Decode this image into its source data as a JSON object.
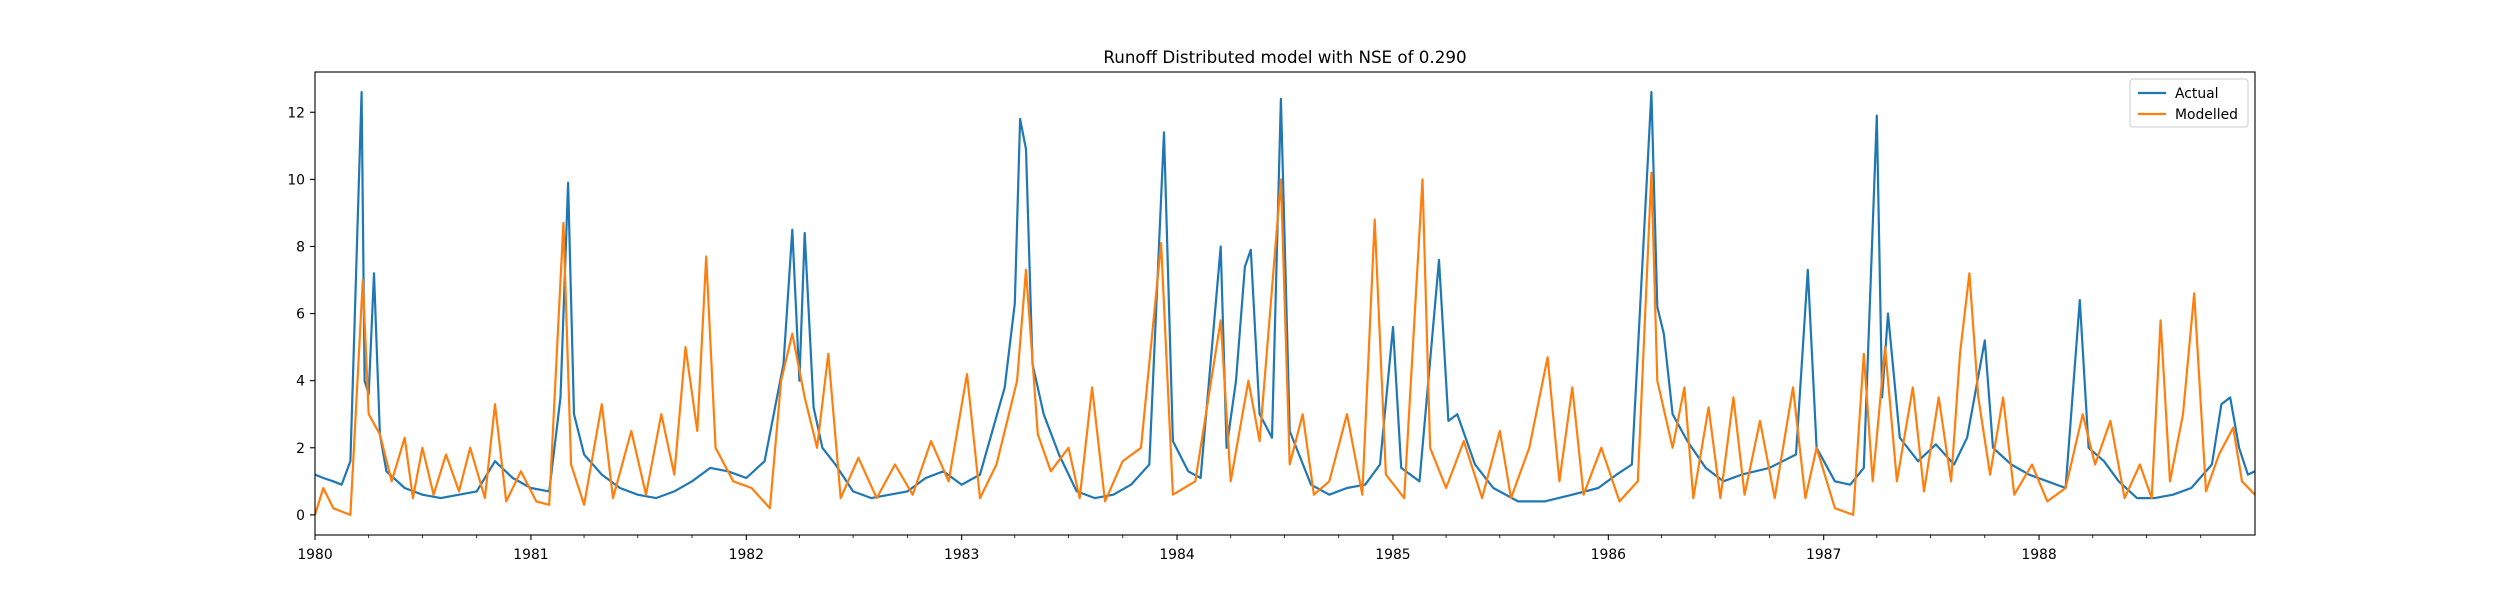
{
  "chart_data": {
    "type": "line",
    "title": "Runoff Distributed model with NSE of 0.290",
    "xlabel": "",
    "ylabel": "",
    "x_range": [
      "1980-01-01",
      "1989-01-01"
    ],
    "ylim": [
      -0.6,
      13.2
    ],
    "x_ticks": [
      "1980",
      "1981",
      "1982",
      "1983",
      "1984",
      "1985",
      "1986",
      "1987",
      "1988"
    ],
    "y_ticks": [
      0,
      2,
      4,
      6,
      8,
      10,
      12
    ],
    "grid": false,
    "legend_position": "top-right",
    "series": [
      {
        "name": "Actual",
        "color": "#1f77b4",
        "points": [
          [
            "1980-01-01",
            1.2
          ],
          [
            "1980-01-15",
            1.1
          ],
          [
            "1980-02-01",
            1.0
          ],
          [
            "1980-02-15",
            0.9
          ],
          [
            "1980-03-01",
            1.6
          ],
          [
            "1980-03-20",
            12.6
          ],
          [
            "1980-03-25",
            4.0
          ],
          [
            "1980-04-01",
            3.6
          ],
          [
            "1980-04-10",
            7.2
          ],
          [
            "1980-04-20",
            2.4
          ],
          [
            "1980-05-01",
            1.3
          ],
          [
            "1980-06-01",
            0.8
          ],
          [
            "1980-07-01",
            0.6
          ],
          [
            "1980-08-01",
            0.5
          ],
          [
            "1980-09-01",
            0.6
          ],
          [
            "1980-10-01",
            0.7
          ],
          [
            "1980-11-01",
            1.6
          ],
          [
            "1980-12-01",
            1.1
          ],
          [
            "1981-01-01",
            0.8
          ],
          [
            "1981-02-01",
            0.7
          ],
          [
            "1981-02-20",
            3.5
          ],
          [
            "1981-03-05",
            9.9
          ],
          [
            "1981-03-15",
            3.0
          ],
          [
            "1981-04-01",
            1.8
          ],
          [
            "1981-05-01",
            1.2
          ],
          [
            "1981-06-01",
            0.8
          ],
          [
            "1981-07-01",
            0.6
          ],
          [
            "1981-08-01",
            0.5
          ],
          [
            "1981-09-01",
            0.7
          ],
          [
            "1981-10-01",
            1.0
          ],
          [
            "1981-11-01",
            1.4
          ],
          [
            "1981-12-01",
            1.3
          ],
          [
            "1982-01-01",
            1.1
          ],
          [
            "1982-02-01",
            1.6
          ],
          [
            "1982-03-05",
            4.5
          ],
          [
            "1982-03-20",
            8.5
          ],
          [
            "1982-04-01",
            4.0
          ],
          [
            "1982-04-10",
            8.4
          ],
          [
            "1982-04-25",
            3.2
          ],
          [
            "1982-05-10",
            2.0
          ],
          [
            "1982-06-01",
            1.5
          ],
          [
            "1982-07-01",
            0.7
          ],
          [
            "1982-08-01",
            0.5
          ],
          [
            "1982-09-01",
            0.6
          ],
          [
            "1982-10-01",
            0.7
          ],
          [
            "1982-11-01",
            1.1
          ],
          [
            "1982-12-01",
            1.3
          ],
          [
            "1983-01-01",
            0.9
          ],
          [
            "1983-02-01",
            1.2
          ],
          [
            "1983-03-15",
            3.8
          ],
          [
            "1983-04-01",
            6.3
          ],
          [
            "1983-04-10",
            11.8
          ],
          [
            "1983-04-20",
            10.9
          ],
          [
            "1983-05-01",
            4.5
          ],
          [
            "1983-05-20",
            3.0
          ],
          [
            "1983-06-15",
            1.8
          ],
          [
            "1983-07-15",
            0.7
          ],
          [
            "1983-08-15",
            0.5
          ],
          [
            "1983-09-15",
            0.6
          ],
          [
            "1983-10-15",
            0.9
          ],
          [
            "1983-11-15",
            1.5
          ],
          [
            "1983-12-10",
            11.4
          ],
          [
            "1983-12-25",
            2.2
          ],
          [
            "1984-01-20",
            1.3
          ],
          [
            "1984-02-10",
            1.1
          ],
          [
            "1984-03-15",
            8.0
          ],
          [
            "1984-03-25",
            2.0
          ],
          [
            "1984-04-10",
            4.0
          ],
          [
            "1984-04-25",
            7.4
          ],
          [
            "1984-05-05",
            7.9
          ],
          [
            "1984-05-20",
            3.0
          ],
          [
            "1984-06-10",
            2.3
          ],
          [
            "1984-06-25",
            12.4
          ],
          [
            "1984-07-10",
            2.5
          ],
          [
            "1984-08-15",
            0.9
          ],
          [
            "1984-09-15",
            0.6
          ],
          [
            "1984-10-15",
            0.8
          ],
          [
            "1984-11-15",
            0.9
          ],
          [
            "1984-12-10",
            1.5
          ],
          [
            "1985-01-01",
            5.6
          ],
          [
            "1985-01-15",
            1.4
          ],
          [
            "1985-02-15",
            1.0
          ],
          [
            "1985-03-20",
            7.6
          ],
          [
            "1985-04-05",
            2.8
          ],
          [
            "1985-04-20",
            3.0
          ],
          [
            "1985-05-20",
            1.5
          ],
          [
            "1985-06-20",
            0.8
          ],
          [
            "1985-08-01",
            0.4
          ],
          [
            "1985-09-15",
            0.4
          ],
          [
            "1985-11-01",
            0.6
          ],
          [
            "1985-12-15",
            0.8
          ],
          [
            "1986-01-15",
            1.2
          ],
          [
            "1986-02-10",
            1.5
          ],
          [
            "1986-03-15",
            12.6
          ],
          [
            "1986-03-25",
            6.2
          ],
          [
            "1986-04-05",
            5.4
          ],
          [
            "1986-04-20",
            3.0
          ],
          [
            "1986-05-15",
            2.2
          ],
          [
            "1986-06-15",
            1.4
          ],
          [
            "1986-07-15",
            1.0
          ],
          [
            "1986-08-15",
            1.2
          ],
          [
            "1986-10-01",
            1.4
          ],
          [
            "1986-11-15",
            1.8
          ],
          [
            "1986-12-05",
            7.3
          ],
          [
            "1986-12-20",
            2.0
          ],
          [
            "1987-01-20",
            1.0
          ],
          [
            "1987-02-15",
            0.9
          ],
          [
            "1987-03-10",
            1.4
          ],
          [
            "1987-04-01",
            11.9
          ],
          [
            "1987-04-10",
            3.5
          ],
          [
            "1987-04-20",
            6.0
          ],
          [
            "1987-05-10",
            2.3
          ],
          [
            "1987-06-10",
            1.6
          ],
          [
            "1987-07-10",
            2.1
          ],
          [
            "1987-08-10",
            1.5
          ],
          [
            "1987-09-01",
            2.3
          ],
          [
            "1987-10-01",
            5.2
          ],
          [
            "1987-10-15",
            2.0
          ],
          [
            "1987-11-15",
            1.5
          ],
          [
            "1987-12-15",
            1.2
          ],
          [
            "1988-01-15",
            1.0
          ],
          [
            "1988-02-15",
            0.8
          ],
          [
            "1988-03-10",
            6.4
          ],
          [
            "1988-03-25",
            2.0
          ],
          [
            "1988-04-20",
            1.6
          ],
          [
            "1988-05-15",
            1.0
          ],
          [
            "1988-06-15",
            0.5
          ],
          [
            "1988-07-15",
            0.5
          ],
          [
            "1988-08-15",
            0.6
          ],
          [
            "1988-09-15",
            0.8
          ],
          [
            "1988-10-20",
            1.5
          ],
          [
            "1988-11-05",
            3.3
          ],
          [
            "1988-11-20",
            3.5
          ],
          [
            "1988-12-05",
            2.0
          ],
          [
            "1988-12-20",
            1.2
          ],
          [
            "1989-01-01",
            1.3
          ]
        ]
      },
      {
        "name": "Modelled",
        "color": "#ff7f0e",
        "points": [
          [
            "1980-01-01",
            0.0
          ],
          [
            "1980-01-15",
            0.8
          ],
          [
            "1980-02-01",
            0.2
          ],
          [
            "1980-02-15",
            0.1
          ],
          [
            "1980-03-01",
            0.0
          ],
          [
            "1980-03-22",
            7.0
          ],
          [
            "1980-04-01",
            3.0
          ],
          [
            "1980-04-20",
            2.4
          ],
          [
            "1980-05-10",
            1.0
          ],
          [
            "1980-06-01",
            2.3
          ],
          [
            "1980-06-15",
            0.5
          ],
          [
            "1980-07-01",
            2.0
          ],
          [
            "1980-07-20",
            0.6
          ],
          [
            "1980-08-10",
            1.8
          ],
          [
            "1980-09-01",
            0.7
          ],
          [
            "1980-09-20",
            2.0
          ],
          [
            "1980-10-15",
            0.5
          ],
          [
            "1980-11-01",
            3.3
          ],
          [
            "1980-11-20",
            0.4
          ],
          [
            "1980-12-15",
            1.3
          ],
          [
            "1981-01-10",
            0.4
          ],
          [
            "1981-02-01",
            0.3
          ],
          [
            "1981-02-25",
            8.7
          ],
          [
            "1981-03-10",
            1.5
          ],
          [
            "1981-04-01",
            0.3
          ],
          [
            "1981-05-01",
            3.3
          ],
          [
            "1981-05-20",
            0.5
          ],
          [
            "1981-06-20",
            2.5
          ],
          [
            "1981-07-15",
            0.6
          ],
          [
            "1981-08-10",
            3.0
          ],
          [
            "1981-09-01",
            1.2
          ],
          [
            "1981-09-20",
            5.0
          ],
          [
            "1981-10-10",
            2.5
          ],
          [
            "1981-10-25",
            7.7
          ],
          [
            "1981-11-10",
            2.0
          ],
          [
            "1981-12-10",
            1.0
          ],
          [
            "1982-01-10",
            0.8
          ],
          [
            "1982-02-10",
            0.2
          ],
          [
            "1982-03-01",
            4.0
          ],
          [
            "1982-03-20",
            5.4
          ],
          [
            "1982-04-10",
            3.5
          ],
          [
            "1982-05-01",
            2.0
          ],
          [
            "1982-05-20",
            4.8
          ],
          [
            "1982-06-10",
            0.5
          ],
          [
            "1982-07-10",
            1.7
          ],
          [
            "1982-08-10",
            0.5
          ],
          [
            "1982-09-10",
            1.5
          ],
          [
            "1982-10-10",
            0.6
          ],
          [
            "1982-11-10",
            2.2
          ],
          [
            "1982-12-10",
            1.0
          ],
          [
            "1983-01-10",
            4.2
          ],
          [
            "1983-02-01",
            0.5
          ],
          [
            "1983-03-01",
            1.5
          ],
          [
            "1983-04-05",
            4.0
          ],
          [
            "1983-04-20",
            7.3
          ],
          [
            "1983-05-10",
            2.4
          ],
          [
            "1983-06-01",
            1.3
          ],
          [
            "1983-07-01",
            2.0
          ],
          [
            "1983-07-20",
            0.5
          ],
          [
            "1983-08-10",
            3.8
          ],
          [
            "1983-09-01",
            0.4
          ],
          [
            "1983-10-01",
            1.6
          ],
          [
            "1983-11-01",
            2.0
          ],
          [
            "1983-12-05",
            8.1
          ],
          [
            "1983-12-25",
            0.6
          ],
          [
            "1984-02-01",
            1.0
          ],
          [
            "1984-03-15",
            5.8
          ],
          [
            "1984-04-01",
            1.0
          ],
          [
            "1984-05-01",
            4.0
          ],
          [
            "1984-05-20",
            2.2
          ],
          [
            "1984-06-25",
            10.0
          ],
          [
            "1984-07-10",
            1.5
          ],
          [
            "1984-08-01",
            3.0
          ],
          [
            "1984-08-20",
            0.6
          ],
          [
            "1984-09-15",
            1.0
          ],
          [
            "1984-10-15",
            3.0
          ],
          [
            "1984-11-10",
            0.6
          ],
          [
            "1984-12-01",
            8.8
          ],
          [
            "1984-12-20",
            1.2
          ],
          [
            "1985-01-20",
            0.5
          ],
          [
            "1985-02-20",
            10.0
          ],
          [
            "1985-03-05",
            2.0
          ],
          [
            "1985-04-01",
            0.8
          ],
          [
            "1985-05-01",
            2.2
          ],
          [
            "1985-06-01",
            0.5
          ],
          [
            "1985-07-01",
            2.5
          ],
          [
            "1985-07-20",
            0.5
          ],
          [
            "1985-08-20",
            2.0
          ],
          [
            "1985-09-20",
            4.7
          ],
          [
            "1985-10-10",
            1.0
          ],
          [
            "1985-11-01",
            3.8
          ],
          [
            "1985-11-20",
            0.6
          ],
          [
            "1985-12-20",
            2.0
          ],
          [
            "1986-01-20",
            0.4
          ],
          [
            "1986-02-20",
            1.0
          ],
          [
            "1986-03-15",
            10.2
          ],
          [
            "1986-03-25",
            4.0
          ],
          [
            "1986-04-20",
            2.0
          ],
          [
            "1986-05-10",
            3.8
          ],
          [
            "1986-05-25",
            0.5
          ],
          [
            "1986-06-20",
            3.2
          ],
          [
            "1986-07-10",
            0.5
          ],
          [
            "1986-08-01",
            3.5
          ],
          [
            "1986-08-20",
            0.6
          ],
          [
            "1986-09-15",
            2.8
          ],
          [
            "1986-10-10",
            0.5
          ],
          [
            "1986-11-10",
            3.8
          ],
          [
            "1986-12-01",
            0.5
          ],
          [
            "1986-12-20",
            2.0
          ],
          [
            "1987-01-20",
            0.2
          ],
          [
            "1987-02-20",
            0.0
          ],
          [
            "1987-03-10",
            4.8
          ],
          [
            "1987-03-25",
            1.0
          ],
          [
            "1987-04-15",
            5.0
          ],
          [
            "1987-05-05",
            1.0
          ],
          [
            "1987-06-01",
            3.8
          ],
          [
            "1987-06-20",
            0.7
          ],
          [
            "1987-07-15",
            3.5
          ],
          [
            "1987-08-05",
            1.0
          ],
          [
            "1987-08-20",
            4.8
          ],
          [
            "1987-09-05",
            7.2
          ],
          [
            "1987-09-20",
            3.5
          ],
          [
            "1987-10-10",
            1.2
          ],
          [
            "1987-11-01",
            3.5
          ],
          [
            "1987-11-20",
            0.6
          ],
          [
            "1987-12-20",
            1.5
          ],
          [
            "1988-01-15",
            0.4
          ],
          [
            "1988-02-15",
            0.8
          ],
          [
            "1988-03-15",
            3.0
          ],
          [
            "1988-04-05",
            1.5
          ],
          [
            "1988-05-01",
            2.8
          ],
          [
            "1988-05-25",
            0.5
          ],
          [
            "1988-06-20",
            1.5
          ],
          [
            "1988-07-10",
            0.5
          ],
          [
            "1988-07-25",
            5.8
          ],
          [
            "1988-08-10",
            1.0
          ],
          [
            "1988-09-01",
            3.0
          ],
          [
            "1988-09-20",
            6.6
          ],
          [
            "1988-10-10",
            0.7
          ],
          [
            "1988-11-01",
            1.8
          ],
          [
            "1988-11-25",
            2.6
          ],
          [
            "1988-12-10",
            1.0
          ],
          [
            "1989-01-01",
            0.6
          ]
        ]
      }
    ]
  }
}
